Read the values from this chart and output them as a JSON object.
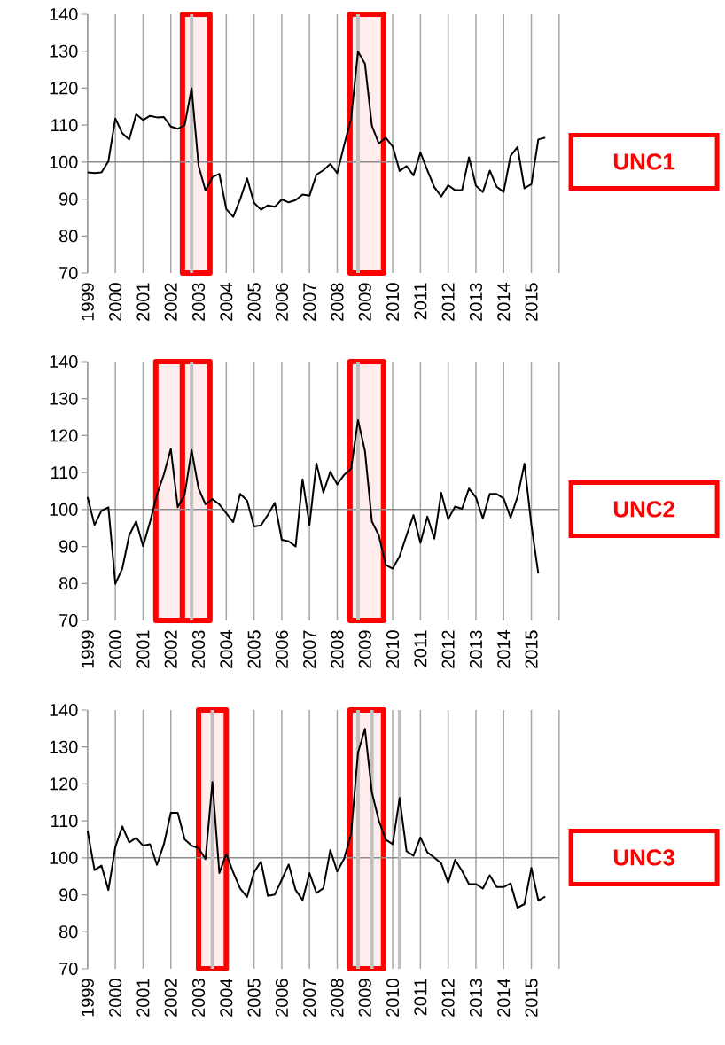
{
  "chart_data": [
    {
      "type": "line",
      "color": "#000000",
      "annotations": [
        "UNC1"
      ],
      "x": [
        1999,
        1999.25,
        1999.5,
        1999.75,
        2000,
        2000.25,
        2000.5,
        2000.75,
        2001,
        2001.25,
        2001.5,
        2001.75,
        2002,
        2002.25,
        2002.5,
        2002.75,
        2003,
        2003.25,
        2003.5,
        2003.75,
        2004,
        2004.25,
        2004.5,
        2004.75,
        2005,
        2005.25,
        2005.5,
        2005.75,
        2006,
        2006.25,
        2006.5,
        2006.75,
        2007,
        2007.25,
        2007.5,
        2007.75,
        2008,
        2008.25,
        2008.5,
        2008.75,
        2009,
        2009.25,
        2009.5,
        2009.75,
        2010,
        2010.25,
        2010.5,
        2010.75,
        2011,
        2011.25,
        2011.5,
        2011.75,
        2012,
        2012.25,
        2012.5,
        2012.75,
        2013,
        2013.25,
        2013.5,
        2013.75,
        2014,
        2014.25,
        2014.5,
        2014.75,
        2015,
        2015.25,
        2015.5
      ],
      "values": [
        97.2,
        97,
        97.2,
        100.2,
        111.8,
        107.8,
        106.1,
        112.9,
        111.4,
        112.5,
        112.1,
        112.2,
        109.6,
        109,
        110,
        120,
        99,
        92.3,
        95.9,
        96.8,
        87.3,
        85.2,
        89.9,
        95.6,
        89,
        87.1,
        88.3,
        87.9,
        89.9,
        89.1,
        89.7,
        91.2,
        90.9,
        96.6,
        97.8,
        99.5,
        97,
        104.6,
        111.8,
        129.9,
        126.6,
        109.8,
        105,
        106.6,
        104.2,
        97.6,
        98.9,
        96.4,
        102.6,
        97.8,
        93.2,
        90.7,
        93.7,
        92.4,
        92.4,
        101.3,
        93.6,
        91.9,
        97.7,
        93.3,
        91.9,
        101.7,
        104.1,
        92.9,
        94,
        106.1,
        106.6
      ],
      "xlim": [
        1999,
        2016
      ],
      "ylim": [
        70,
        140
      ],
      "xticks": [
        1999,
        2000,
        2001,
        2002,
        2003,
        2004,
        2005,
        2006,
        2007,
        2008,
        2009,
        2010,
        2011,
        2012,
        2013,
        2014,
        2015
      ],
      "yticks": [
        70,
        80,
        90,
        100,
        110,
        120,
        130,
        140
      ],
      "grid": "x",
      "ref_lines": [
        {
          "axis": "y",
          "value": 100,
          "color": "#8c8c8c"
        },
        {
          "axis": "x",
          "value": 2002.75,
          "color": "#c0c0c0"
        },
        {
          "axis": "x",
          "value": 2008.75,
          "color": "#c0c0c0"
        }
      ],
      "bands": [
        {
          "axis": "x",
          "from": 2002.42,
          "to": 2003.41,
          "color": "#ff0000"
        },
        {
          "axis": "x",
          "from": 2008.46,
          "to": 2009.67,
          "color": "#ff0000"
        }
      ]
    },
    {
      "type": "line",
      "color": "#000000",
      "annotations": [
        "UNC2"
      ],
      "x": [
        1999,
        1999.25,
        1999.5,
        1999.75,
        2000,
        2000.25,
        2000.5,
        2000.75,
        2001,
        2001.25,
        2001.5,
        2001.75,
        2002,
        2002.25,
        2002.5,
        2002.75,
        2003,
        2003.25,
        2003.5,
        2003.75,
        2004,
        2004.25,
        2004.5,
        2004.75,
        2005,
        2005.25,
        2005.5,
        2005.75,
        2006,
        2006.25,
        2006.5,
        2006.75,
        2007,
        2007.25,
        2007.5,
        2007.75,
        2008,
        2008.25,
        2008.5,
        2008.75,
        2009,
        2009.25,
        2009.5,
        2009.75,
        2010,
        2010.25,
        2010.5,
        2010.75,
        2011,
        2011.25,
        2011.5,
        2011.75,
        2012,
        2012.25,
        2012.5,
        2012.75,
        2013,
        2013.25,
        2013.5,
        2013.75,
        2014,
        2014.25,
        2014.5,
        2014.75,
        2015,
        2015.25
      ],
      "values": [
        103.4,
        95.8,
        99.7,
        100.6,
        79.9,
        84,
        93,
        96.8,
        90.1,
        96.6,
        104,
        109.5,
        116.4,
        100.6,
        104,
        116.1,
        105.7,
        101.4,
        102.8,
        101.4,
        99,
        96.6,
        104.2,
        102.4,
        95.4,
        95.7,
        98.6,
        101.8,
        91.8,
        91.4,
        90,
        108.2,
        95.8,
        112.5,
        104.6,
        110.2,
        106.8,
        109.4,
        111,
        124.2,
        115.8,
        96.8,
        93,
        85,
        84,
        87.4,
        93,
        98.5,
        91,
        98.1,
        92.1,
        104.5,
        97.4,
        100.8,
        100.2,
        105.7,
        103.3,
        97.6,
        104.2,
        104.2,
        103,
        97.8,
        103.4,
        112.4,
        95.8,
        82.7
      ],
      "xlim": [
        1999,
        2016
      ],
      "ylim": [
        70,
        140
      ],
      "xticks": [
        1999,
        2000,
        2001,
        2002,
        2003,
        2004,
        2005,
        2006,
        2007,
        2008,
        2009,
        2010,
        2011,
        2012,
        2013,
        2014,
        2015
      ],
      "yticks": [
        70,
        80,
        90,
        100,
        110,
        120,
        130,
        140
      ],
      "grid": "x",
      "ref_lines": [
        {
          "axis": "y",
          "value": 100,
          "color": "#8c8c8c"
        },
        {
          "axis": "x",
          "value": 2002.75,
          "color": "#c0c0c0"
        },
        {
          "axis": "x",
          "value": 2008.75,
          "color": "#c0c0c0"
        }
      ],
      "bands": [
        {
          "axis": "x",
          "from": 2001.46,
          "to": 2002.42,
          "color": "#ff0000"
        },
        {
          "axis": "x",
          "from": 2002.42,
          "to": 2003.41,
          "color": "#ff0000"
        },
        {
          "axis": "x",
          "from": 2008.46,
          "to": 2009.67,
          "color": "#ff0000"
        }
      ]
    },
    {
      "type": "line",
      "color": "#000000",
      "annotations": [
        "UNC3"
      ],
      "x": [
        1999,
        1999.25,
        1999.5,
        1999.75,
        2000,
        2000.25,
        2000.5,
        2000.75,
        2001,
        2001.25,
        2001.5,
        2001.75,
        2002,
        2002.25,
        2002.5,
        2002.75,
        2003,
        2003.25,
        2003.5,
        2003.75,
        2004,
        2004.25,
        2004.5,
        2004.75,
        2005,
        2005.25,
        2005.5,
        2005.75,
        2006,
        2006.25,
        2006.5,
        2006.75,
        2007,
        2007.25,
        2007.5,
        2007.75,
        2008,
        2008.25,
        2008.5,
        2008.75,
        2009,
        2009.25,
        2009.5,
        2009.75,
        2010,
        2010.25,
        2010.5,
        2010.75,
        2011,
        2011.25,
        2011.5,
        2011.75,
        2012,
        2012.25,
        2012.5,
        2012.75,
        2013,
        2013.25,
        2013.5,
        2013.75,
        2014,
        2014.25,
        2014.5,
        2014.75,
        2015,
        2015.25,
        2015.5
      ],
      "values": [
        107.3,
        96.7,
        97.9,
        91.3,
        102.9,
        108.5,
        104.2,
        105.4,
        103.3,
        103.7,
        98.1,
        103.7,
        112.2,
        112.2,
        105,
        103.3,
        102.6,
        99.7,
        120.5,
        95.9,
        101,
        96.1,
        91.7,
        89.4,
        96.1,
        99,
        89.7,
        90.1,
        94.1,
        98.2,
        91.3,
        88.6,
        95.9,
        90.5,
        91.8,
        102.1,
        96.3,
        99.8,
        106.5,
        128.5,
        134.9,
        117.7,
        110.1,
        104.9,
        103.7,
        116.2,
        101.8,
        100.6,
        105.5,
        101.5,
        100.1,
        98.5,
        93.3,
        99.5,
        96.5,
        92.9,
        92.9,
        91.7,
        95.3,
        92.1,
        92.1,
        93.1,
        86.5,
        87.5,
        97.3,
        88.5,
        89.5
      ],
      "xlim": [
        1999,
        2016
      ],
      "ylim": [
        70,
        140
      ],
      "xticks": [
        1999,
        2000,
        2001,
        2002,
        2003,
        2004,
        2005,
        2006,
        2007,
        2008,
        2009,
        2010,
        2011,
        2012,
        2013,
        2014,
        2015
      ],
      "yticks": [
        70,
        80,
        90,
        100,
        110,
        120,
        130,
        140
      ],
      "grid": "x",
      "ref_lines": [
        {
          "axis": "y",
          "value": 100,
          "color": "#8c8c8c"
        },
        {
          "axis": "x",
          "value": 2003.5,
          "color": "#c0c0c0"
        },
        {
          "axis": "x",
          "value": 2008.75,
          "color": "#c0c0c0"
        },
        {
          "axis": "x",
          "value": 2009.25,
          "color": "#c0c0c0"
        },
        {
          "axis": "x",
          "value": 2010.25,
          "color": "#c0c0c0"
        }
      ],
      "bands": [
        {
          "axis": "x",
          "from": 2003.0,
          "to": 2004.0,
          "color": "#ff0000"
        },
        {
          "axis": "x",
          "from": 2008.46,
          "to": 2009.67,
          "color": "#ff0000"
        }
      ]
    }
  ]
}
